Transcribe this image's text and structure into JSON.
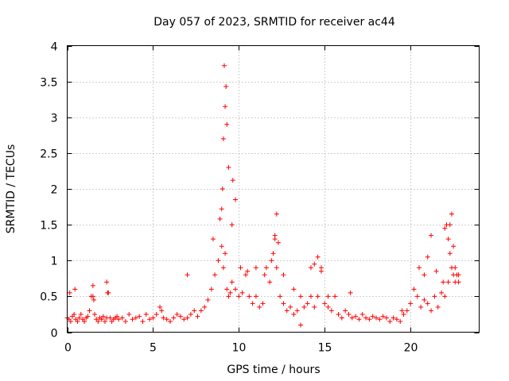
{
  "chart_data": {
    "type": "scatter",
    "title": "Day 057 of 2023, SRMTID for receiver ac44",
    "xlabel": "GPS time / hours",
    "ylabel": "SRMTID / TECUs",
    "xlim": [
      0,
      24
    ],
    "ylim": [
      0,
      4
    ],
    "x_ticks": [
      0,
      5,
      10,
      15,
      20
    ],
    "x_tick_labels": [
      "0",
      "5",
      "10",
      "15",
      "20"
    ],
    "y_ticks": [
      0,
      0.5,
      1,
      1.5,
      2,
      2.5,
      3,
      3.5,
      4
    ],
    "y_tick_labels": [
      "0",
      "0.5",
      "1",
      "1.5",
      "2",
      "2.5",
      "3",
      "3.5",
      "4"
    ],
    "grid": true,
    "marker": "plus",
    "color": "#ff0000",
    "series": [
      {
        "name": "SRMTID",
        "x": [
          0.0,
          0.1,
          0.2,
          0.3,
          0.4,
          0.5,
          0.6,
          0.7,
          0.8,
          0.9,
          1.0,
          1.1,
          1.2,
          1.3,
          1.4,
          1.5,
          1.6,
          1.7,
          1.8,
          1.9,
          2.0,
          2.1,
          2.2,
          2.3,
          2.4,
          2.5,
          2.6,
          2.7,
          2.8,
          2.9,
          3.0,
          3.2,
          3.4,
          3.6,
          3.8,
          4.0,
          4.2,
          4.4,
          4.6,
          4.8,
          5.0,
          5.2,
          5.4,
          5.6,
          5.8,
          6.0,
          6.2,
          6.4,
          6.6,
          6.8,
          7.0,
          7.2,
          7.4,
          7.6,
          7.8,
          8.0,
          8.2,
          8.4,
          8.6,
          8.8,
          9.0,
          9.1,
          9.2,
          9.3,
          9.4,
          9.5,
          9.6,
          9.8,
          10.0,
          10.2,
          10.4,
          10.6,
          10.8,
          11.0,
          11.2,
          11.4,
          11.6,
          11.8,
          12.0,
          12.1,
          12.2,
          12.4,
          12.6,
          12.8,
          13.0,
          13.2,
          13.4,
          13.6,
          13.8,
          14.0,
          14.2,
          14.4,
          14.6,
          14.8,
          15.0,
          15.2,
          15.4,
          15.6,
          15.8,
          16.0,
          16.2,
          16.4,
          16.6,
          16.8,
          17.0,
          17.2,
          17.4,
          17.6,
          17.8,
          18.0,
          18.2,
          18.4,
          18.6,
          18.8,
          19.0,
          19.2,
          19.4,
          19.6,
          19.8,
          20.0,
          20.2,
          20.4,
          20.6,
          20.8,
          21.0,
          21.2,
          21.4,
          21.6,
          21.8,
          22.0,
          22.2,
          22.3,
          22.4,
          22.5,
          22.6,
          22.8,
          0.15,
          0.45,
          1.5,
          1.55,
          2.3,
          2.35,
          5.5,
          7.0,
          8.5,
          8.9,
          9.0,
          9.05,
          9.1,
          9.15,
          9.2,
          9.25,
          9.3,
          9.4,
          9.6,
          9.65,
          9.8,
          10.1,
          10.5,
          11.0,
          11.5,
          11.9,
          12.1,
          12.2,
          12.3,
          12.6,
          13.2,
          13.6,
          14.2,
          14.4,
          14.6,
          14.8,
          15.2,
          16.5,
          19.5,
          20.5,
          20.8,
          21.0,
          21.2,
          21.5,
          21.9,
          22.0,
          22.1,
          22.2,
          22.3,
          22.4,
          22.5,
          22.6,
          22.7,
          22.8
        ],
        "y": [
          0.2,
          0.18,
          0.15,
          0.22,
          0.25,
          0.18,
          0.15,
          0.2,
          0.25,
          0.18,
          0.15,
          0.2,
          0.22,
          0.3,
          0.5,
          0.65,
          0.25,
          0.18,
          0.15,
          0.2,
          0.18,
          0.22,
          0.15,
          0.2,
          0.55,
          0.2,
          0.15,
          0.18,
          0.2,
          0.22,
          0.18,
          0.2,
          0.15,
          0.25,
          0.18,
          0.2,
          0.22,
          0.15,
          0.25,
          0.18,
          0.2,
          0.25,
          0.35,
          0.2,
          0.18,
          0.15,
          0.2,
          0.25,
          0.22,
          0.18,
          0.2,
          0.25,
          0.3,
          0.22,
          0.3,
          0.35,
          0.45,
          0.6,
          0.8,
          1.0,
          1.2,
          0.9,
          1.1,
          0.6,
          0.5,
          0.55,
          0.7,
          0.6,
          0.5,
          0.55,
          0.8,
          0.5,
          0.4,
          0.5,
          0.35,
          0.4,
          0.9,
          0.7,
          1.1,
          1.3,
          0.9,
          0.5,
          0.4,
          0.3,
          0.35,
          0.25,
          0.3,
          0.5,
          0.35,
          0.4,
          0.5,
          0.35,
          0.5,
          0.9,
          0.4,
          0.35,
          0.3,
          0.5,
          0.25,
          0.2,
          0.3,
          0.25,
          0.2,
          0.22,
          0.18,
          0.25,
          0.2,
          0.18,
          0.22,
          0.2,
          0.18,
          0.22,
          0.2,
          0.15,
          0.2,
          0.18,
          0.15,
          0.25,
          0.3,
          0.4,
          0.6,
          0.5,
          0.35,
          0.45,
          0.4,
          0.3,
          0.5,
          0.35,
          0.55,
          0.5,
          0.7,
          1.1,
          0.9,
          0.8,
          0.7,
          0.8,
          0.55,
          0.6,
          0.5,
          0.45,
          0.7,
          0.55,
          0.3,
          0.8,
          1.3,
          1.58,
          1.72,
          2.0,
          2.7,
          3.72,
          3.15,
          3.43,
          2.9,
          2.3,
          1.5,
          2.12,
          1.85,
          0.9,
          0.85,
          0.9,
          0.8,
          1.0,
          1.35,
          1.65,
          1.25,
          0.8,
          0.6,
          0.1,
          0.9,
          0.95,
          1.05,
          0.85,
          0.5,
          0.55,
          0.3,
          0.9,
          0.8,
          1.05,
          1.35,
          0.85,
          0.7,
          1.45,
          1.5,
          1.3,
          1.5,
          1.65,
          1.2,
          0.9,
          0.8,
          0.7
        ]
      }
    ]
  }
}
